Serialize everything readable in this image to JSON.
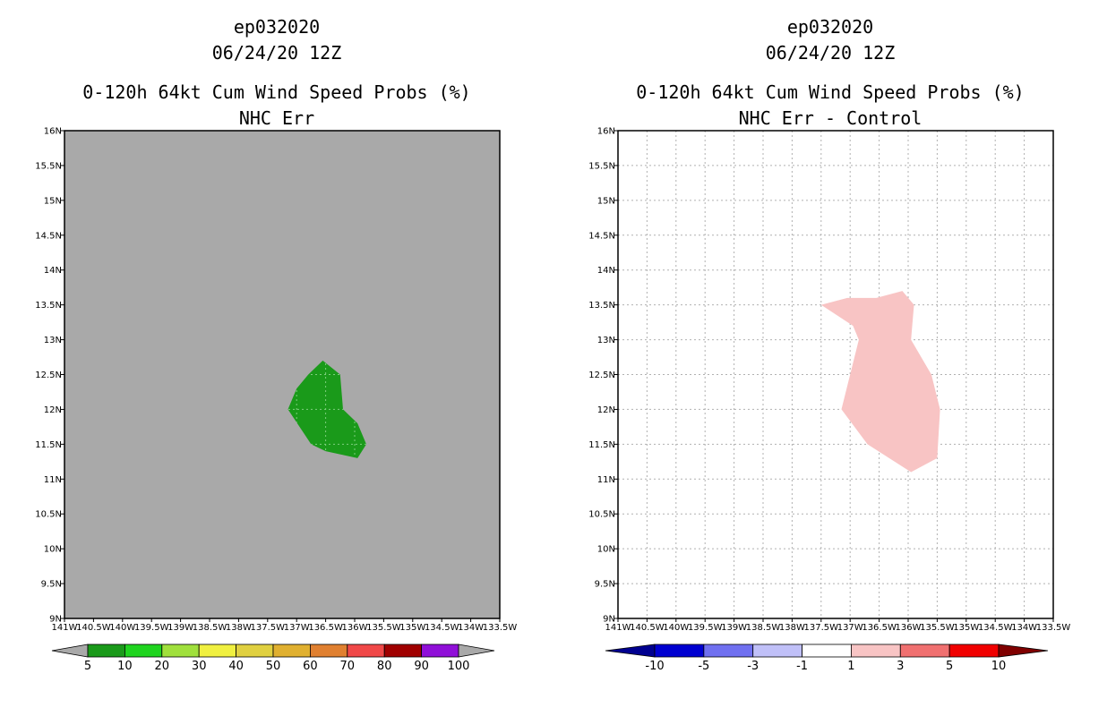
{
  "chart_data": [
    {
      "type": "heatmap",
      "storm_id": "ep032020",
      "datetime": "06/24/20 12Z",
      "title": "0-120h 64kt Cum Wind Speed Probs (%)",
      "subtitle": "NHC Err",
      "xlim": [
        -141,
        -133.5
      ],
      "ylim": [
        9,
        16
      ],
      "x_ticks": [
        -141,
        -140.5,
        -140,
        -139.5,
        -139,
        -138.5,
        -138,
        -137.5,
        -137,
        -136.5,
        -136,
        -135.5,
        -135,
        -134.5,
        -134,
        -133.5
      ],
      "x_tick_labels": [
        "141W",
        "140.5W",
        "140W",
        "139.5W",
        "139W",
        "138.5W",
        "138W",
        "137.5W",
        "137W",
        "136.5W",
        "136W",
        "135.5W",
        "135W",
        "134.5W",
        "134W",
        "133.5W"
      ],
      "y_ticks": [
        9,
        9.5,
        10,
        10.5,
        11,
        11.5,
        12,
        12.5,
        13,
        13.5,
        14,
        14.5,
        15,
        15.5,
        16
      ],
      "y_tick_labels": [
        "9N",
        "9.5N",
        "10N",
        "10.5N",
        "11N",
        "11.5N",
        "12N",
        "12.5N",
        "13N",
        "13.5N",
        "14N",
        "14.5N",
        "15N",
        "15.5N",
        "16N"
      ],
      "grid": false,
      "background_color": "#a9a9a9",
      "regions": [
        {
          "category": "5-10%",
          "color": "#1a9a1a",
          "lon": [
            -137.15,
            -137.0,
            -136.8,
            -136.55,
            -136.25,
            -136.2,
            -135.95,
            -135.8,
            -135.95,
            -136.5,
            -136.75,
            -137.15
          ],
          "lat": [
            12.0,
            12.3,
            12.5,
            12.7,
            12.5,
            12.0,
            11.8,
            11.5,
            11.3,
            11.4,
            11.5,
            12.0
          ]
        }
      ],
      "colorbar": {
        "labels": [
          "5",
          "10",
          "20",
          "30",
          "40",
          "50",
          "60",
          "70",
          "80",
          "90",
          "100"
        ],
        "colors": [
          "#1a9a1a",
          "#1fd41f",
          "#a0e03c",
          "#f0f040",
          "#e0d040",
          "#e0b030",
          "#e08030",
          "#f04848",
          "#a00000",
          "#9010d8"
        ],
        "under_color": "#a9a9a9",
        "over_color": "#a9a9a9"
      }
    },
    {
      "type": "heatmap",
      "storm_id": "ep032020",
      "datetime": "06/24/20 12Z",
      "title": "0-120h 64kt Cum Wind Speed Probs (%)",
      "subtitle": "NHC Err - Control",
      "xlim": [
        -141,
        -133.5
      ],
      "ylim": [
        9,
        16
      ],
      "x_ticks": [
        -141,
        -140.5,
        -140,
        -139.5,
        -139,
        -138.5,
        -138,
        -137.5,
        -137,
        -136.5,
        -136,
        -135.5,
        -135,
        -134.5,
        -134,
        -133.5
      ],
      "x_tick_labels": [
        "141W",
        "140.5W",
        "140W",
        "139.5W",
        "139W",
        "138.5W",
        "138W",
        "137.5W",
        "137W",
        "136.5W",
        "136W",
        "135.5W",
        "135W",
        "134.5W",
        "134W",
        "133.5W"
      ],
      "y_ticks": [
        9,
        9.5,
        10,
        10.5,
        11,
        11.5,
        12,
        12.5,
        13,
        13.5,
        14,
        14.5,
        15,
        15.5,
        16
      ],
      "y_tick_labels": [
        "9N",
        "9.5N",
        "10N",
        "10.5N",
        "11N",
        "11.5N",
        "12N",
        "12.5N",
        "13N",
        "13.5N",
        "14N",
        "14.5N",
        "15N",
        "15.5N",
        "16N"
      ],
      "grid": true,
      "background_color": "#ffffff",
      "regions": [
        {
          "category": "1-3",
          "color": "#f8c4c4",
          "lon": [
            -137.5,
            -137.05,
            -136.55,
            -136.1,
            -135.9,
            -135.95,
            -135.6,
            -135.45,
            -135.5,
            -135.95,
            -136.7,
            -137.15,
            -137.0,
            -136.85,
            -136.95,
            -137.5
          ],
          "lat": [
            13.5,
            13.6,
            13.6,
            13.7,
            13.5,
            13.0,
            12.5,
            12.0,
            11.3,
            11.1,
            11.5,
            12.0,
            12.5,
            13.0,
            13.2,
            13.5
          ]
        }
      ],
      "colorbar": {
        "labels": [
          "-10",
          "-5",
          "-3",
          "-1",
          "1",
          "3",
          "5",
          "10"
        ],
        "colors": [
          "#0000d0",
          "#7070f0",
          "#c0c0f8",
          "#ffffff",
          "#f8c4c4",
          "#f07070",
          "#f00000"
        ],
        "under_color": "#000090",
        "over_color": "#800000"
      }
    }
  ]
}
